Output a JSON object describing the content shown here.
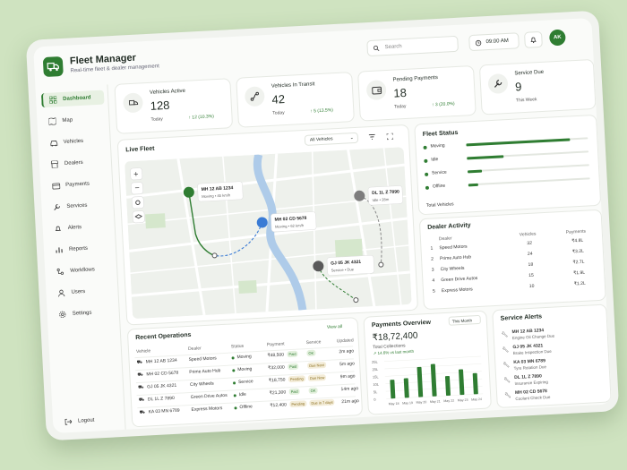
{
  "app": {
    "title": "Fleet Manager",
    "subtitle": "Real-time fleet & dealer management"
  },
  "header": {
    "search_placeholder": "Search",
    "time": "09:00 AM",
    "avatar_initials": "AK"
  },
  "sidebar": {
    "items": [
      {
        "label": "Dashboard",
        "icon": "grid-icon"
      },
      {
        "label": "Map",
        "icon": "map-icon"
      },
      {
        "label": "Vehicles",
        "icon": "car-icon"
      },
      {
        "label": "Dealers",
        "icon": "store-icon"
      },
      {
        "label": "Payments",
        "icon": "wallet-icon"
      },
      {
        "label": "Services",
        "icon": "wrench-icon"
      },
      {
        "label": "Alerts",
        "icon": "bell-icon"
      },
      {
        "label": "Reports",
        "icon": "chart-icon"
      },
      {
        "label": "Workflows",
        "icon": "flow-icon"
      },
      {
        "label": "Users",
        "icon": "user-icon"
      },
      {
        "label": "Settings",
        "icon": "gear-icon"
      }
    ],
    "logout": "Logout"
  },
  "stats": [
    {
      "label": "Vehicles Active",
      "value": "128",
      "foot": "Today",
      "delta": "↑ 12 (10.3%)"
    },
    {
      "label": "Vehicles In Transit",
      "value": "42",
      "foot": "Today",
      "delta": "↑ 5 (13.5%)"
    },
    {
      "label": "Pending Payments",
      "value": "18",
      "foot": "Today",
      "delta": "↑ 3 (20.0%)"
    },
    {
      "label": "Service Due",
      "value": "9",
      "foot": "This Week",
      "delta": ""
    }
  ],
  "live_fleet": {
    "title": "Live Fleet",
    "filter": "All Vehicles",
    "markers": [
      {
        "plate": "MH 12 AB 1234",
        "status": "Moving • 45 km/h"
      },
      {
        "plate": "MH 02 CD 5678",
        "status": "Moving • 62 km/h"
      },
      {
        "plate": "DL 1L Z 7890",
        "status": "Idle • 28m"
      },
      {
        "plate": "GJ 05 JK 4321",
        "status": "Service • Due"
      }
    ]
  },
  "fleet_status": {
    "title": "Fleet Status",
    "items": [
      {
        "label": "Moving",
        "fraction": 0.85
      },
      {
        "label": "Idle",
        "fraction": 0.3
      },
      {
        "label": "Service",
        "fraction": 0.12
      },
      {
        "label": "Offline",
        "fraction": 0.08
      }
    ],
    "total_label": "Total Vehicles"
  },
  "dealer_activity": {
    "title": "Dealer Activity",
    "headers": [
      "Dealer",
      "Vehicles",
      "Payments"
    ],
    "rows": [
      {
        "rank": "1",
        "dealer": "Speed Motors",
        "vehicles": "32",
        "payments": "₹4.8L"
      },
      {
        "rank": "2",
        "dealer": "Prime Auto Hub",
        "vehicles": "24",
        "payments": "₹3.2L"
      },
      {
        "rank": "3",
        "dealer": "City Wheels",
        "vehicles": "18",
        "payments": "₹2.7L"
      },
      {
        "rank": "4",
        "dealer": "Green Drive Autos",
        "vehicles": "15",
        "payments": "₹1.9L"
      },
      {
        "rank": "5",
        "dealer": "Express Motors",
        "vehicles": "10",
        "payments": "₹1.2L"
      }
    ]
  },
  "recent_operations": {
    "title": "Recent Operations",
    "view_all": "View all",
    "headers": [
      "Vehicle",
      "Dealer",
      "Status",
      "Payment",
      "Service",
      "Updated"
    ],
    "rows": [
      {
        "vehicle": "MH 12 AB 1234",
        "dealer": "Speed Motors",
        "status": "Moving",
        "amount": "₹48,500",
        "pay": "Paid",
        "service": "OK",
        "updated": "2m ago"
      },
      {
        "vehicle": "MH 02 CD 5678",
        "dealer": "Prime Auto Hub",
        "status": "Moving",
        "amount": "₹32,000",
        "pay": "Paid",
        "service": "Due Next",
        "updated": "5m ago"
      },
      {
        "vehicle": "GJ 05 JK 4321",
        "dealer": "City Wheels",
        "status": "Service",
        "amount": "₹18,750",
        "pay": "Pending",
        "service": "Due Now",
        "updated": "9m ago"
      },
      {
        "vehicle": "DL 1L Z 7890",
        "dealer": "Green Drive Autos",
        "status": "Idle",
        "amount": "₹21,300",
        "pay": "Paid",
        "service": "OK",
        "updated": "14m ago"
      },
      {
        "vehicle": "KA 03 MN 6789",
        "dealer": "Express Motors",
        "status": "Offline",
        "amount": "₹12,400",
        "pay": "Pending",
        "service": "Due in 7 days",
        "updated": "21m ago"
      }
    ]
  },
  "payments_overview": {
    "title": "Payments Overview",
    "range": "This Month",
    "total": "₹18,72,400",
    "total_label": "Total Collections",
    "delta": "↗ 14.6% vs last month"
  },
  "chart_data": {
    "type": "bar",
    "categories": [
      "May 18",
      "May 19",
      "May 20",
      "May 21",
      "May 22",
      "May 23",
      "May 24"
    ],
    "values": [
      1.25,
      1.3,
      2.0,
      2.15,
      1.3,
      1.7,
      1.4
    ],
    "yticks": [
      "0",
      "5L",
      "10L",
      "15L",
      "20L",
      "25L"
    ],
    "ylim": [
      0,
      2.5
    ]
  },
  "service_alerts": {
    "title": "Service Alerts",
    "items": [
      {
        "plate": "MH 12 AB 1234",
        "desc": "Engine Oil Change Due"
      },
      {
        "plate": "GJ 05 JK 4321",
        "desc": "Brake Inspection Due"
      },
      {
        "plate": "KA 03 MN 6789",
        "desc": "Tyre Rotation Due"
      },
      {
        "plate": "DL 1L Z 7890",
        "desc": "Insurance Expiring"
      },
      {
        "plate": "MH 02 CD 5678",
        "desc": "Coolant Check Due"
      }
    ]
  },
  "colors": {
    "accent": "#2f7d32",
    "bg": "#cfe3c0"
  }
}
